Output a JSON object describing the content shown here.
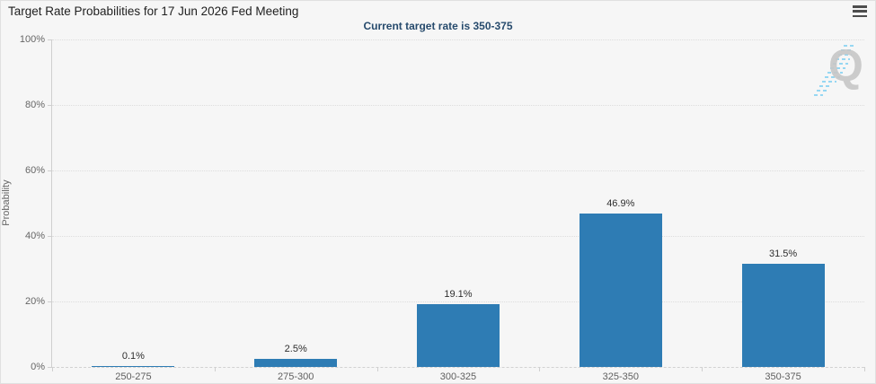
{
  "header": {
    "menu_icon": "hamburger-menu-icon"
  },
  "watermark": {
    "letter": "Q"
  },
  "chart_data": {
    "type": "bar",
    "title": "Target Rate Probabilities for 17 Jun 2026 Fed Meeting",
    "subtitle": "Current target rate is 350-375",
    "categories": [
      "250-275",
      "275-300",
      "300-325",
      "325-350",
      "350-375"
    ],
    "values": [
      0.1,
      2.5,
      19.1,
      46.9,
      31.5
    ],
    "data_labels": [
      "0.1%",
      "2.5%",
      "19.1%",
      "46.9%",
      "31.5%"
    ],
    "xlabel": "",
    "ylabel": "Probability",
    "ylim": [
      0,
      100
    ],
    "y_ticks": [
      {
        "value": 0,
        "label": "0%"
      },
      {
        "value": 20,
        "label": "20%"
      },
      {
        "value": 40,
        "label": "40%"
      },
      {
        "value": 60,
        "label": "60%"
      },
      {
        "value": 80,
        "label": "80%"
      },
      {
        "value": 100,
        "label": "100%"
      }
    ],
    "grid": "horizontal-dotted",
    "legend": "none",
    "bar_color": "#2e7cb4",
    "subtitle_color": "#274b6d",
    "background_color": "#f6f6f6"
  }
}
